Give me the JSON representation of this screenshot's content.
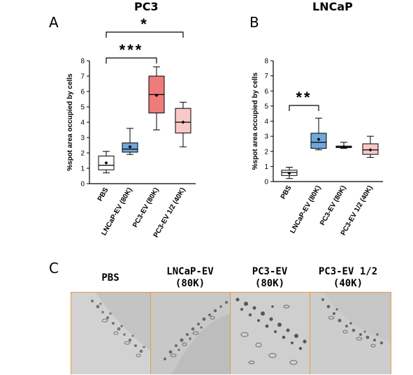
{
  "panels": {
    "a_letter": "A",
    "b_letter": "B",
    "c_letter": "C"
  },
  "chart_data": [
    {
      "type": "box",
      "title": "PC3",
      "ylabel": "%spot area occupied by cells",
      "ylim": [
        0,
        8
      ],
      "yticks": [
        "0",
        "1",
        "2",
        "3",
        "4",
        "5",
        "6",
        "7",
        "8"
      ],
      "categories": [
        "PBS",
        "LNCaP-EV (80K)",
        "PC3-EV (80K)",
        "PC3-EV 1/2 (40K)"
      ],
      "fill_colors": [
        "#ffffff",
        "#6fa8dc",
        "#f07b7b",
        "#f9c8c8"
      ],
      "boxes": [
        {
          "min": 0.7,
          "q1": 0.9,
          "median": 1.2,
          "q3": 1.8,
          "max": 2.1,
          "mean": 1.35
        },
        {
          "min": 1.9,
          "q1": 2.05,
          "median": 2.25,
          "q3": 2.65,
          "max": 3.6,
          "mean": 2.4
        },
        {
          "min": 3.5,
          "q1": 4.6,
          "median": 5.8,
          "q3": 7.0,
          "max": 7.6,
          "mean": 5.75
        },
        {
          "min": 2.4,
          "q1": 3.3,
          "median": 4.0,
          "q3": 4.9,
          "max": 5.3,
          "mean": 4.0
        }
      ],
      "significance": [
        {
          "from": 0,
          "to": 2,
          "label": "***"
        },
        {
          "from": 0,
          "to": 3,
          "label": "*"
        }
      ]
    },
    {
      "type": "box",
      "title": "LNCaP",
      "ylabel": "%spot area occupied by cells",
      "ylim": [
        0,
        8
      ],
      "yticks": [
        "0",
        "1",
        "2",
        "3",
        "4",
        "5",
        "6",
        "7",
        "8"
      ],
      "categories": [
        "PBS",
        "LNCaP-EV (80K)",
        "PC3-EV (80K)",
        "PC3-EV 1/2 (40K)"
      ],
      "fill_colors": [
        "#ffffff",
        "#6fa8dc",
        "#ffffff",
        "#f9c8c8"
      ],
      "boxes": [
        {
          "min": 0.2,
          "q1": 0.4,
          "median": 0.6,
          "q3": 0.75,
          "max": 0.95,
          "mean": 0.55
        },
        {
          "min": 2.1,
          "q1": 2.2,
          "median": 2.6,
          "q3": 3.2,
          "max": 4.2,
          "mean": 2.8
        },
        {
          "min": 2.2,
          "q1": 2.25,
          "median": 2.3,
          "q3": 2.35,
          "max": 2.6,
          "mean": 2.3
        },
        {
          "min": 1.6,
          "q1": 1.8,
          "median": 2.1,
          "q3": 2.5,
          "max": 3.0,
          "mean": 2.1
        }
      ],
      "significance": [
        {
          "from": 0,
          "to": 1,
          "label": "**"
        }
      ]
    }
  ],
  "micrographs": [
    {
      "label_line1": "PBS",
      "label_line2": ""
    },
    {
      "label_line1": "LNCaP-EV",
      "label_line2": "(80K)"
    },
    {
      "label_line1": "PC3-EV",
      "label_line2": "(80K)"
    },
    {
      "label_line1": "PC3-EV 1/2",
      "label_line2": "(40K)"
    }
  ],
  "micrograph_border_color": "#e89a3a"
}
